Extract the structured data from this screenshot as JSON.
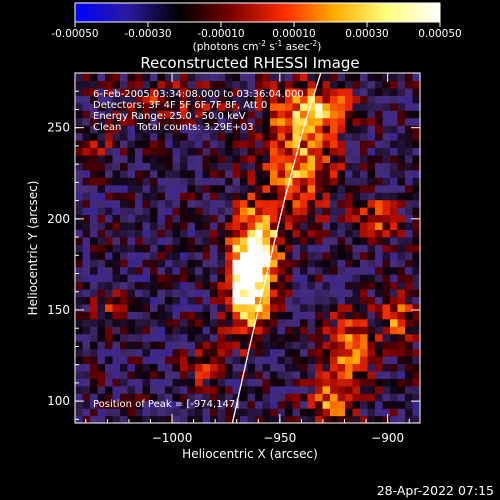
{
  "colorbar": {
    "tick_labels": [
      "-0.00050",
      "-0.00030",
      "-0.00010",
      "0.00010",
      "0.00030",
      "0.00050"
    ],
    "tick_values": [
      -0.0005,
      -0.0003,
      -0.0001,
      0.0001,
      0.0003,
      0.0005
    ],
    "range": [
      -0.0005,
      0.0005
    ],
    "colors": [
      "#0000ff",
      "#2a1aa0",
      "#000000",
      "#7a0000",
      "#ff2a00",
      "#ffb000",
      "#ffff80",
      "#ffffff"
    ],
    "units": {
      "prefix": "(photons cm",
      "sup1": "-2",
      "mid1": " s",
      "sup2": "-1",
      "mid2": " asec",
      "sup3": "-2",
      "suffix": ")"
    }
  },
  "chart_data": {
    "type": "heatmap",
    "title": "Reconstructed RHESSI Image",
    "xlabel": "Heliocentric X (arcsec)",
    "ylabel": "Heliocentric Y (arcsec)",
    "xlim": [
      -1045,
      -885
    ],
    "ylim": [
      88,
      280
    ],
    "xticks": [
      {
        "value": -1000,
        "label": "−1000"
      },
      {
        "value": -950,
        "label": "−950"
      },
      {
        "value": -900,
        "label": "−900"
      }
    ],
    "yticks": [
      {
        "value": 100,
        "label": "100"
      },
      {
        "value": 150,
        "label": "150"
      },
      {
        "value": 200,
        "label": "200"
      },
      {
        "value": 250,
        "label": "250"
      }
    ],
    "annotations": [
      "6-Feb-2005 03:34:08.000 to 03:36:04.000",
      "Detectors: 3F 4F 5F 6F 7F 8F, Att 0",
      "Energy Range: 25.0 - 50.0 keV",
      "Clean     Total counts: 3.29E+03"
    ],
    "peak_label": "Position of Peak = [-974,147]",
    "peak": {
      "x": -974,
      "y": 147
    },
    "limb_curve": [
      {
        "x": -972,
        "y": 88
      },
      {
        "x": -964,
        "y": 130
      },
      {
        "x": -956,
        "y": 170
      },
      {
        "x": -948,
        "y": 210
      },
      {
        "x": -939,
        "y": 250
      },
      {
        "x": -931,
        "y": 280
      }
    ],
    "sources": [
      {
        "x": -965,
        "y": 160,
        "sx": 7,
        "sy": 18,
        "amp": 1.0
      },
      {
        "x": -960,
        "y": 185,
        "sx": 8,
        "sy": 18,
        "amp": 0.85
      },
      {
        "x": -940,
        "y": 230,
        "sx": 12,
        "sy": 20,
        "amp": 0.65
      },
      {
        "x": -935,
        "y": 262,
        "sx": 15,
        "sy": 10,
        "amp": 0.6
      },
      {
        "x": -1000,
        "y": 265,
        "sx": 18,
        "sy": 9,
        "amp": 0.35
      },
      {
        "x": -918,
        "y": 130,
        "sx": 8,
        "sy": 14,
        "amp": 0.6
      },
      {
        "x": -925,
        "y": 100,
        "sx": 8,
        "sy": 10,
        "amp": 0.6
      },
      {
        "x": -895,
        "y": 145,
        "sx": 6,
        "sy": 10,
        "amp": 0.55
      },
      {
        "x": -905,
        "y": 200,
        "sx": 7,
        "sy": 9,
        "amp": 0.55
      },
      {
        "x": -985,
        "y": 120,
        "sx": 6,
        "sy": 8,
        "amp": 0.45
      },
      {
        "x": -1030,
        "y": 150,
        "sx": 6,
        "sy": 8,
        "amp": 0.35
      },
      {
        "x": -1035,
        "y": 240,
        "sx": 5,
        "sy": 6,
        "amp": 0.3
      }
    ]
  },
  "footer": {
    "timestamp": "28-Apr-2022 07:15"
  }
}
